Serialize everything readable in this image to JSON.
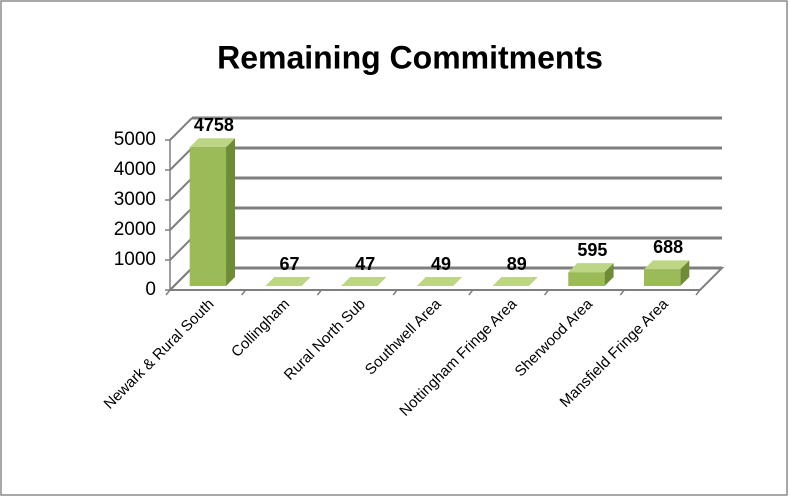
{
  "chart_data": {
    "type": "bar3d",
    "title": "Remaining Commitments",
    "categories": [
      "Newark & Rural South",
      "Collingham",
      "Rural North Sub",
      "Southwell Area",
      "Nottingham Fringe Area",
      "Sherwood Area",
      "Mansfield Fringe Area"
    ],
    "values": [
      4758,
      67,
      47,
      49,
      89,
      595,
      688
    ],
    "color": "#9bbb59",
    "ylim": [
      0,
      5000
    ],
    "yticks": [
      0,
      1000,
      2000,
      3000,
      4000,
      5000
    ],
    "grid": true
  }
}
